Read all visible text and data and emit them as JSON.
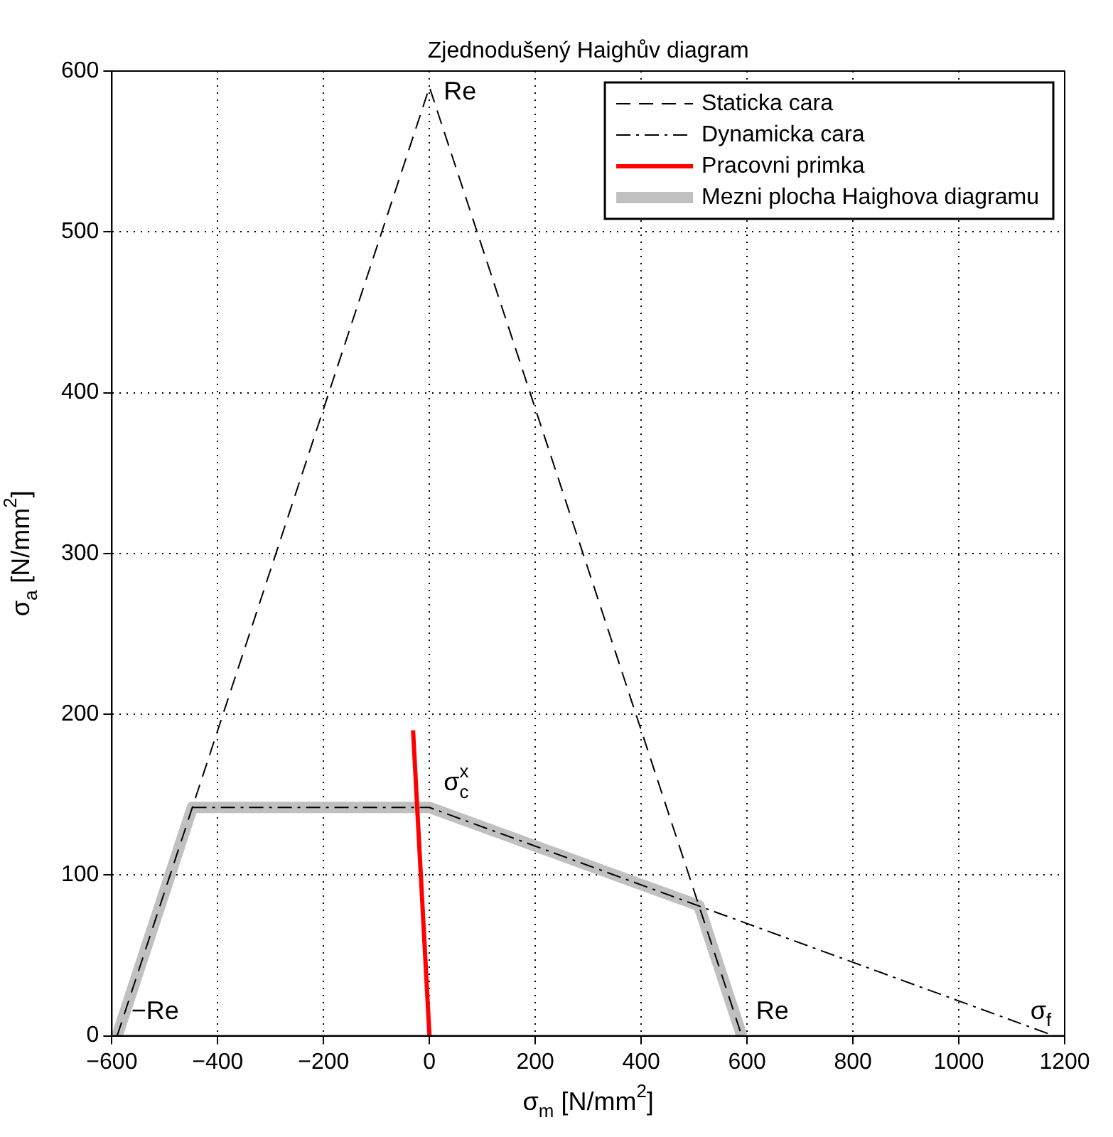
{
  "chart_data": {
    "type": "line",
    "title": "Zjednodušený Haighův diagram",
    "xlabel": "σ$_{m}$ [N/mm$^{2}$]",
    "ylabel": "σ$_{a}$ [N/mm$^{2}$]",
    "series": [
      {
        "name": "Staticka cara",
        "color": "#000000",
        "line_style": "dashed",
        "x": [
          -590,
          0,
          590
        ],
        "values": [
          0,
          590,
          0
        ]
      },
      {
        "name": "Dynamicka cara",
        "color": "#000000",
        "line_style": "dashdot",
        "x": [
          -448,
          0,
          1180
        ],
        "values": [
          142,
          142,
          0
        ]
      },
      {
        "name": "Pracovni primka",
        "color": "#ff0000",
        "line_style": "solid",
        "x": [
          0,
          -31
        ],
        "values": [
          0,
          190
        ]
      },
      {
        "name": "Mezni plocha Haighova diagramu",
        "color": "#c0c0c0",
        "line_style": "solid",
        "x": [
          -590,
          -448,
          0,
          509,
          590
        ],
        "values": [
          0,
          142,
          142,
          81,
          0
        ]
      }
    ],
    "xlim": [
      -600,
      1200
    ],
    "xticks": [
      {
        "value": -600,
        "label": "−600"
      },
      {
        "value": -400,
        "label": "−400"
      },
      {
        "value": -200,
        "label": "−200"
      },
      0,
      200,
      400,
      600,
      800,
      1000,
      1200
    ],
    "ylim": [
      0,
      600
    ],
    "yticks": [
      0,
      100,
      200,
      300,
      400,
      500,
      600
    ],
    "annotations": [
      {
        "text": "Re",
        "x": 0,
        "y": 590
      },
      {
        "text": "−Re",
        "x": -590,
        "y": 0
      },
      {
        "text": "Re",
        "x": 590,
        "y": 0
      },
      {
        "text": "σ$_{c}$$^{x}$",
        "x": 0,
        "y": 142
      },
      {
        "text": "σ$_{f}$",
        "x": 1180,
        "y": 0
      }
    ],
    "grid": true,
    "legend": "top right",
    "marker": "none"
  }
}
